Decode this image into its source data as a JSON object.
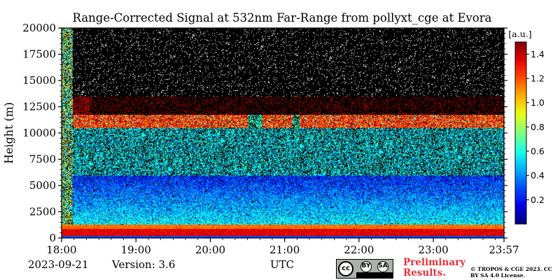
{
  "chart_data": {
    "type": "heatmap",
    "title": "Range-Corrected Signal at 532nm Far-Range from pollyxt_cge at Evora",
    "xlabel": "UTC",
    "ylabel": "Height (m)",
    "x_ticks": [
      "18:00",
      "19:00",
      "20:00",
      "21:00",
      "22:00",
      "23:00",
      "23:57"
    ],
    "x_tick_hours": [
      18.0,
      19.0,
      20.0,
      21.0,
      22.0,
      23.0,
      23.95
    ],
    "xlim": [
      18.0,
      23.95
    ],
    "y_ticks": [
      0,
      2500,
      5000,
      7500,
      10000,
      12500,
      15000,
      17500,
      20000
    ],
    "ylim": [
      0,
      20000
    ],
    "colorbar": {
      "label": "[a.u.]",
      "ticks": [
        0.2,
        0.4,
        0.6,
        0.8,
        1.0,
        1.2,
        1.4
      ],
      "range": [
        0.0,
        1.5
      ],
      "colormap": "jet"
    },
    "features": {
      "surface_layer_top_m": 1300,
      "aerosol_decay_top_m": 6000,
      "cloud_layer_m": [
        10500,
        11800
      ],
      "noise_above_m": 12000
    }
  },
  "footer": {
    "date": "2023-09-21",
    "version": "Version: 3.6",
    "preliminary": "Preliminary Results.",
    "copyright": "© TROPOS & CGE 2023. CC BY SA 4.0 License.",
    "license_badge": {
      "cc": "cc",
      "by": "BY",
      "sa": "SA"
    }
  },
  "colors": {
    "text": "#000000",
    "preliminary": "#e8323c",
    "plot_background": "#000000"
  }
}
